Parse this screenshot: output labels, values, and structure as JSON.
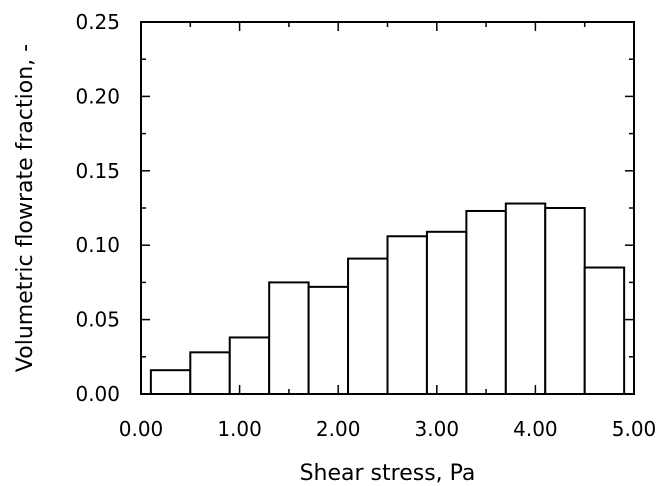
{
  "chart_data": {
    "type": "bar",
    "title": "",
    "xlabel": "Shear stress, Pa",
    "ylabel": "Volumetric flowrate fraction, -",
    "xlim": [
      0,
      5
    ],
    "ylim": [
      0,
      0.25
    ],
    "x_ticks": [
      0,
      1,
      2,
      3,
      4,
      5
    ],
    "x_tick_labels": [
      "0.00",
      "1.00",
      "2.00",
      "3.00",
      "4.00",
      "5.00"
    ],
    "y_ticks": [
      0,
      0.05,
      0.1,
      0.15,
      0.2,
      0.25
    ],
    "y_tick_labels": [
      "0.00",
      "0.05",
      "0.10",
      "0.15",
      "0.20",
      "0.25"
    ],
    "grid": false,
    "legend": "none",
    "bins": [
      {
        "x0": 0.1,
        "x1": 0.5,
        "value": 0.016
      },
      {
        "x0": 0.5,
        "x1": 0.9,
        "value": 0.028
      },
      {
        "x0": 0.9,
        "x1": 1.3,
        "value": 0.038
      },
      {
        "x0": 1.3,
        "x1": 1.7,
        "value": 0.075
      },
      {
        "x0": 1.7,
        "x1": 2.1,
        "value": 0.072
      },
      {
        "x0": 2.1,
        "x1": 2.5,
        "value": 0.091
      },
      {
        "x0": 2.5,
        "x1": 2.9,
        "value": 0.106
      },
      {
        "x0": 2.9,
        "x1": 3.3,
        "value": 0.109
      },
      {
        "x0": 3.3,
        "x1": 3.7,
        "value": 0.123
      },
      {
        "x0": 3.7,
        "x1": 4.1,
        "value": 0.128
      },
      {
        "x0": 4.1,
        "x1": 4.5,
        "value": 0.125
      },
      {
        "x0": 4.5,
        "x1": 4.9,
        "value": 0.085
      }
    ]
  }
}
